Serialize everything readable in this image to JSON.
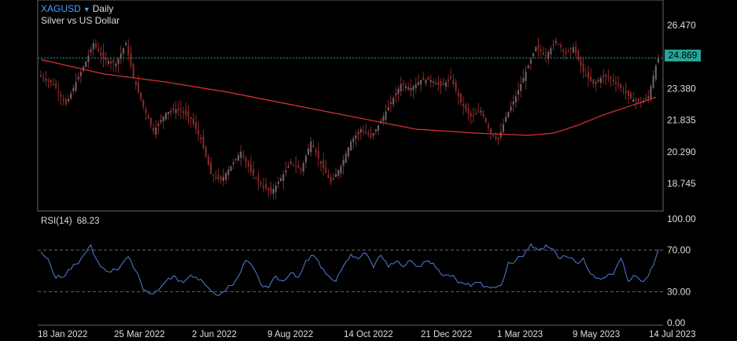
{
  "header": {
    "symbol": "XAGUSD",
    "caret_icon": "chevron-down-icon",
    "timeframe": "Daily",
    "description": "Silver vs US Dollar"
  },
  "last_price": "24.869",
  "price_axis": [
    "26.470",
    "23.380",
    "21.835",
    "20.290",
    "18.745"
  ],
  "rsi": {
    "label": "RSI(14)",
    "value": "68.23",
    "axis": [
      "100.00",
      "70.00",
      "30.00",
      "0.00"
    ]
  },
  "date_axis": [
    "18 Jan 2022",
    "25 Mar 2022",
    "2 Jun 2022",
    "9 Aug 2022",
    "14 Oct 2022",
    "21 Dec 2022",
    "1 Mar 2023",
    "9 May 2023",
    "14 Jul 2023"
  ],
  "colors": {
    "candle": "#8a2a2a",
    "ma": "#d32f2f",
    "rsi": "#4f7fd6",
    "last": "#26a69a",
    "symbol": "#4aa3ff"
  },
  "chart_data": [
    {
      "type": "line",
      "name": "price",
      "x": [
        "18 Jan 2022",
        "25 Mar 2022",
        "2 Jun 2022",
        "9 Aug 2022",
        "14 Oct 2022",
        "21 Dec 2022",
        "1 Mar 2023",
        "9 May 2023",
        "14 Jul 2023"
      ],
      "close": [
        [
          0,
          24.0
        ],
        [
          5,
          23.6
        ],
        [
          10,
          22.6
        ],
        [
          14,
          23.7
        ],
        [
          18,
          24.7
        ],
        [
          21,
          25.6
        ],
        [
          25,
          24.8
        ],
        [
          30,
          24.6
        ],
        [
          34,
          25.6
        ],
        [
          37,
          23.9
        ],
        [
          41,
          22.5
        ],
        [
          45,
          21.3
        ],
        [
          50,
          22.2
        ],
        [
          55,
          22.4
        ],
        [
          60,
          21.9
        ],
        [
          64,
          20.9
        ],
        [
          68,
          19.2
        ],
        [
          72,
          18.9
        ],
        [
          76,
          19.6
        ],
        [
          80,
          20.3
        ],
        [
          84,
          19.3
        ],
        [
          88,
          18.7
        ],
        [
          92,
          18.3
        ],
        [
          96,
          19.0
        ],
        [
          100,
          19.8
        ],
        [
          104,
          19.4
        ],
        [
          108,
          20.8
        ],
        [
          112,
          19.7
        ],
        [
          116,
          18.8
        ],
        [
          120,
          19.6
        ],
        [
          124,
          20.8
        ],
        [
          128,
          21.4
        ],
        [
          132,
          21.0
        ],
        [
          136,
          21.8
        ],
        [
          140,
          22.7
        ],
        [
          144,
          23.6
        ],
        [
          148,
          23.4
        ],
        [
          152,
          23.8
        ],
        [
          156,
          23.8
        ],
        [
          160,
          23.5
        ],
        [
          164,
          23.9
        ],
        [
          168,
          22.7
        ],
        [
          172,
          22.0
        ],
        [
          176,
          22.3
        ],
        [
          180,
          21.2
        ],
        [
          183,
          20.9
        ],
        [
          186,
          22.0
        ],
        [
          190,
          23.0
        ],
        [
          194,
          24.2
        ],
        [
          198,
          25.4
        ],
        [
          202,
          25.0
        ],
        [
          206,
          25.7
        ],
        [
          210,
          25.1
        ],
        [
          213,
          25.4
        ],
        [
          217,
          24.2
        ],
        [
          221,
          23.6
        ],
        [
          225,
          24.0
        ],
        [
          229,
          23.8
        ],
        [
          232,
          23.4
        ],
        [
          236,
          22.9
        ],
        [
          240,
          22.7
        ],
        [
          243,
          23.0
        ],
        [
          246,
          24.5
        ],
        [
          247,
          24.87
        ]
      ],
      "ma": [
        [
          0,
          24.8
        ],
        [
          25,
          24.1
        ],
        [
          50,
          23.7
        ],
        [
          75,
          23.2
        ],
        [
          100,
          22.6
        ],
        [
          125,
          22.0
        ],
        [
          150,
          21.4
        ],
        [
          175,
          21.2
        ],
        [
          195,
          21.1
        ],
        [
          205,
          21.2
        ],
        [
          215,
          21.6
        ],
        [
          225,
          22.1
        ],
        [
          235,
          22.5
        ],
        [
          247,
          23.0
        ]
      ],
      "ylim": [
        17.4,
        27.4
      ]
    },
    {
      "type": "line",
      "name": "RSI(14)",
      "values": [
        [
          0,
          68
        ],
        [
          3,
          60
        ],
        [
          6,
          43
        ],
        [
          9,
          44
        ],
        [
          13,
          54
        ],
        [
          17,
          64
        ],
        [
          20,
          75
        ],
        [
          23,
          56
        ],
        [
          27,
          48
        ],
        [
          31,
          52
        ],
        [
          35,
          65
        ],
        [
          38,
          50
        ],
        [
          41,
          33
        ],
        [
          44,
          28
        ],
        [
          47,
          32
        ],
        [
          50,
          40
        ],
        [
          54,
          44
        ],
        [
          57,
          39
        ],
        [
          60,
          46
        ],
        [
          64,
          42
        ],
        [
          67,
          33
        ],
        [
          70,
          27
        ],
        [
          73,
          29
        ],
        [
          76,
          36
        ],
        [
          79,
          44
        ],
        [
          82,
          60
        ],
        [
          85,
          55
        ],
        [
          88,
          37
        ],
        [
          91,
          35
        ],
        [
          94,
          45
        ],
        [
          97,
          39
        ],
        [
          100,
          48
        ],
        [
          103,
          42
        ],
        [
          106,
          60
        ],
        [
          109,
          67
        ],
        [
          112,
          53
        ],
        [
          115,
          44
        ],
        [
          118,
          40
        ],
        [
          121,
          55
        ],
        [
          124,
          66
        ],
        [
          127,
          62
        ],
        [
          130,
          67
        ],
        [
          133,
          55
        ],
        [
          136,
          65
        ],
        [
          139,
          56
        ],
        [
          142,
          59
        ],
        [
          145,
          54
        ],
        [
          148,
          60
        ],
        [
          151,
          52
        ],
        [
          154,
          59
        ],
        [
          157,
          56
        ],
        [
          160,
          47
        ],
        [
          163,
          46
        ],
        [
          166,
          42
        ],
        [
          169,
          38
        ],
        [
          172,
          35
        ],
        [
          175,
          41
        ],
        [
          178,
          35
        ],
        [
          181,
          33
        ],
        [
          184,
          36
        ],
        [
          187,
          56
        ],
        [
          190,
          60
        ],
        [
          193,
          66
        ],
        [
          196,
          76
        ],
        [
          199,
          70
        ],
        [
          202,
          75
        ],
        [
          205,
          70
        ],
        [
          208,
          62
        ],
        [
          211,
          65
        ],
        [
          214,
          58
        ],
        [
          217,
          60
        ],
        [
          220,
          47
        ],
        [
          223,
          41
        ],
        [
          226,
          44
        ],
        [
          229,
          48
        ],
        [
          232,
          62
        ],
        [
          235,
          40
        ],
        [
          238,
          45
        ],
        [
          241,
          38
        ],
        [
          244,
          52
        ],
        [
          246,
          63
        ],
        [
          247,
          68.23
        ]
      ],
      "ylim": [
        0,
        100
      ]
    }
  ]
}
